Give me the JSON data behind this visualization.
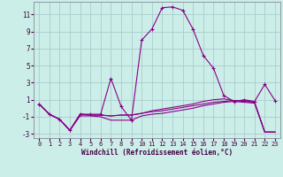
{
  "title": "",
  "xlabel": "Windchill (Refroidissement éolien,°C)",
  "background_color": "#cceee8",
  "grid_color": "#aacccc",
  "line_color": "#880088",
  "x_values": [
    0,
    1,
    2,
    3,
    4,
    5,
    6,
    7,
    8,
    9,
    10,
    11,
    12,
    13,
    14,
    15,
    16,
    17,
    18,
    19,
    20,
    21,
    22,
    23
  ],
  "series1": [
    0.5,
    -0.7,
    -1.3,
    -2.6,
    -0.7,
    -0.7,
    -0.7,
    3.5,
    0.2,
    -1.4,
    8.0,
    9.3,
    11.8,
    11.9,
    11.5,
    9.3,
    6.2,
    4.7,
    1.5,
    0.8,
    1.0,
    0.8,
    2.8,
    0.9
  ],
  "series2": [
    0.5,
    -0.7,
    -1.3,
    -2.6,
    -0.7,
    -0.8,
    -0.8,
    -0.9,
    -0.8,
    -0.8,
    -0.6,
    -0.4,
    -0.3,
    -0.1,
    0.1,
    0.3,
    0.5,
    0.7,
    0.8,
    0.9,
    0.8,
    0.7,
    -2.8,
    -2.8
  ],
  "series3": [
    0.5,
    -0.7,
    -1.3,
    -2.6,
    -0.9,
    -0.9,
    -1.0,
    -1.4,
    -1.4,
    -1.4,
    -0.9,
    -0.7,
    -0.6,
    -0.4,
    -0.2,
    0.0,
    0.3,
    0.5,
    0.7,
    0.8,
    0.7,
    0.6,
    -2.8,
    -2.8
  ],
  "series4": [
    0.5,
    -0.7,
    -1.3,
    -2.6,
    -0.7,
    -0.8,
    -0.8,
    -0.9,
    -0.8,
    -0.8,
    -0.6,
    -0.3,
    -0.1,
    0.1,
    0.3,
    0.5,
    0.8,
    1.0,
    1.1,
    0.9,
    0.9,
    0.7,
    -2.8,
    -2.8
  ],
  "ylim": [
    -3.5,
    12.5
  ],
  "xlim": [
    -0.5,
    23.5
  ],
  "yticks": [
    -3,
    -1,
    1,
    3,
    5,
    7,
    9,
    11
  ],
  "xticks": [
    0,
    1,
    2,
    3,
    4,
    5,
    6,
    7,
    8,
    9,
    10,
    11,
    12,
    13,
    14,
    15,
    16,
    17,
    18,
    19,
    20,
    21,
    22,
    23
  ]
}
